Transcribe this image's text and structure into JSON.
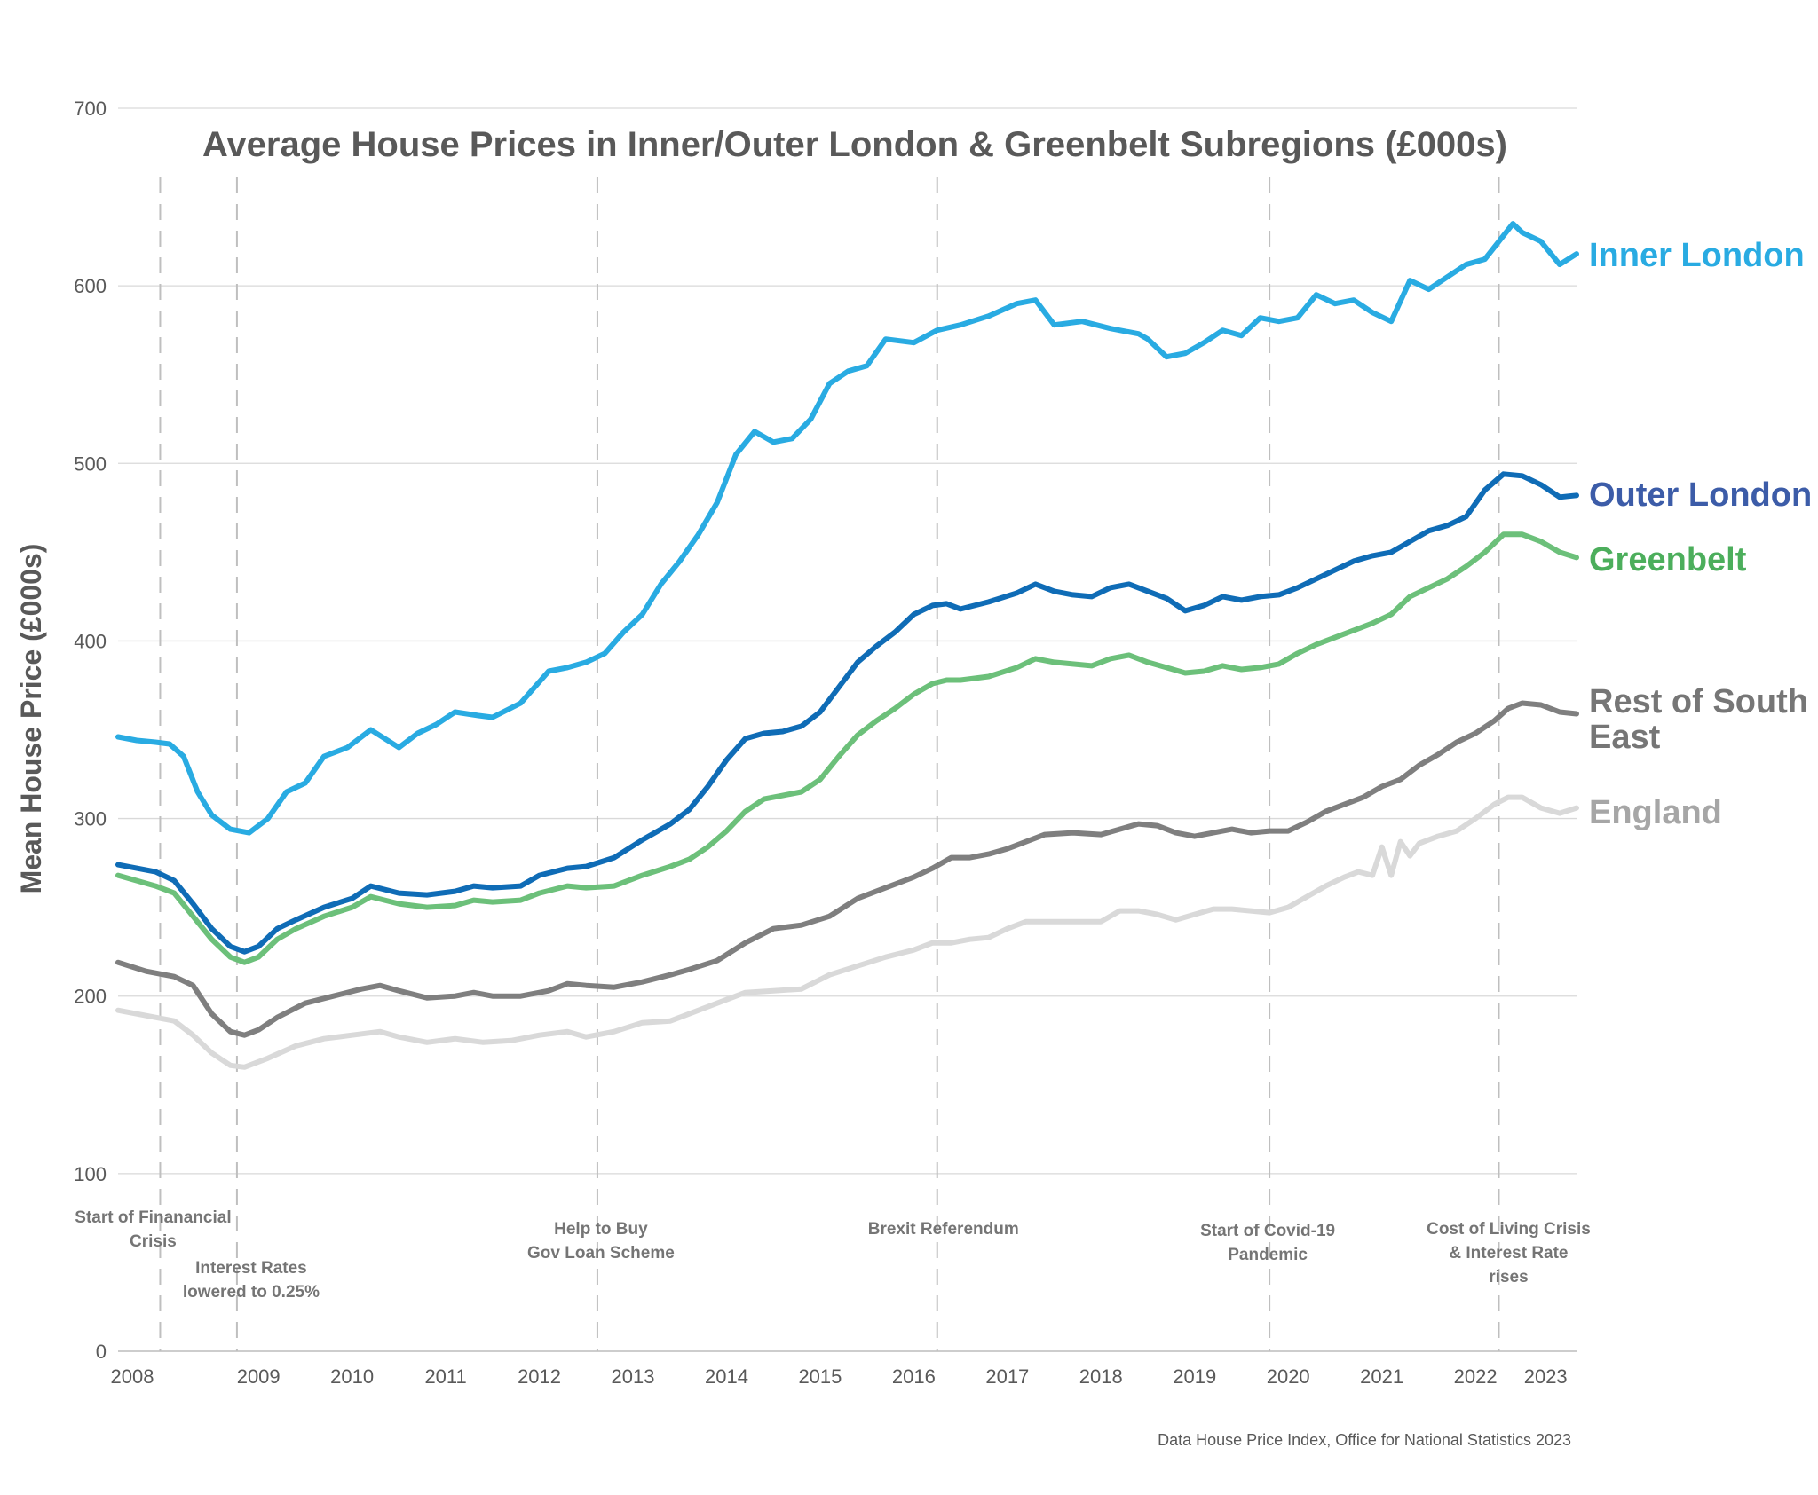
{
  "chart_data": {
    "type": "line",
    "title": "Average House Prices in Inner/Outer London & Greenbelt Subregions (£000s)",
    "ylabel": "Mean House Price (£000s)",
    "xlabel": "",
    "ylim": [
      0,
      700
    ],
    "yticks": [
      0,
      100,
      200,
      300,
      400,
      500,
      600,
      700
    ],
    "xlim": [
      2008.0,
      2023.58
    ],
    "xticks": [
      2008,
      2009,
      2010,
      2011,
      2012,
      2013,
      2014,
      2015,
      2016,
      2017,
      2018,
      2019,
      2020,
      2021,
      2022,
      2023
    ],
    "xtick_labels": [
      "2008",
      "2009",
      "2010",
      "2011",
      "2012",
      "2013",
      "2014",
      "2015",
      "2016",
      "2017",
      "2018",
      "2019",
      "2020",
      "2021",
      "2022",
      "2023"
    ],
    "grid": "horizontal",
    "legend": "direct labels at right end of lines",
    "source": "Data House Price Index, Office for National Statistics 2023",
    "series": [
      {
        "name": "Inner London",
        "color": "#29abe2",
        "x": [
          2008.0,
          2008.2,
          2008.4,
          2008.55,
          2008.7,
          2008.85,
          2009.0,
          2009.2,
          2009.4,
          2009.6,
          2009.8,
          2010.0,
          2010.2,
          2010.45,
          2010.7,
          2011.0,
          2011.2,
          2011.4,
          2011.6,
          2011.85,
          2012.0,
          2012.3,
          2012.6,
          2012.8,
          2013.0,
          2013.2,
          2013.4,
          2013.6,
          2013.8,
          2014.0,
          2014.2,
          2014.4,
          2014.6,
          2014.8,
          2015.0,
          2015.2,
          2015.4,
          2015.6,
          2015.8,
          2016.0,
          2016.2,
          2016.5,
          2016.75,
          2017.0,
          2017.3,
          2017.6,
          2017.8,
          2018.0,
          2018.3,
          2018.6,
          2018.9,
          2019.0,
          2019.2,
          2019.4,
          2019.6,
          2019.8,
          2020.0,
          2020.2,
          2020.4,
          2020.6,
          2020.8,
          2021.0,
          2021.2,
          2021.4,
          2021.6,
          2021.8,
          2022.0,
          2022.2,
          2022.4,
          2022.6,
          2022.75,
          2022.9,
          2023.0,
          2023.2,
          2023.4,
          2023.58
        ],
        "values": [
          346,
          344,
          343,
          342,
          335,
          315,
          302,
          294,
          292,
          300,
          315,
          320,
          335,
          340,
          350,
          340,
          348,
          353,
          360,
          358,
          357,
          365,
          383,
          385,
          388,
          393,
          405,
          415,
          432,
          445,
          460,
          478,
          505,
          518,
          512,
          514,
          525,
          545,
          552,
          555,
          570,
          568,
          575,
          578,
          583,
          590,
          592,
          578,
          580,
          576,
          573,
          570,
          560,
          562,
          568,
          575,
          572,
          582,
          580,
          582,
          595,
          590,
          592,
          585,
          580,
          603,
          598,
          605,
          612,
          615,
          625,
          635,
          630,
          625,
          612,
          618
        ]
      },
      {
        "name": "Outer London",
        "color": "#0f6cb6",
        "label_color": "#3c5ca8",
        "x": [
          2008.0,
          2008.2,
          2008.4,
          2008.6,
          2008.8,
          2009.0,
          2009.2,
          2009.35,
          2009.5,
          2009.7,
          2009.9,
          2010.2,
          2010.5,
          2010.7,
          2011.0,
          2011.3,
          2011.6,
          2011.8,
          2012.0,
          2012.3,
          2012.5,
          2012.8,
          2013.0,
          2013.3,
          2013.6,
          2013.9,
          2014.1,
          2014.3,
          2014.5,
          2014.7,
          2014.9,
          2015.1,
          2015.3,
          2015.5,
          2015.7,
          2015.9,
          2016.1,
          2016.3,
          2016.5,
          2016.7,
          2016.85,
          2017.0,
          2017.3,
          2017.6,
          2017.8,
          2018.0,
          2018.2,
          2018.4,
          2018.6,
          2018.8,
          2019.0,
          2019.2,
          2019.4,
          2019.6,
          2019.8,
          2020.0,
          2020.2,
          2020.4,
          2020.6,
          2020.8,
          2021.0,
          2021.2,
          2021.4,
          2021.6,
          2021.8,
          2022.0,
          2022.2,
          2022.4,
          2022.6,
          2022.8,
          2023.0,
          2023.2,
          2023.4,
          2023.58
        ],
        "values": [
          274,
          272,
          270,
          265,
          252,
          238,
          228,
          225,
          228,
          238,
          243,
          250,
          255,
          262,
          258,
          257,
          259,
          262,
          261,
          262,
          268,
          272,
          273,
          278,
          288,
          297,
          305,
          318,
          333,
          345,
          348,
          349,
          352,
          360,
          374,
          388,
          397,
          405,
          415,
          420,
          421,
          418,
          422,
          427,
          432,
          428,
          426,
          425,
          430,
          432,
          428,
          424,
          417,
          420,
          425,
          423,
          425,
          426,
          430,
          435,
          440,
          445,
          448,
          450,
          456,
          462,
          465,
          470,
          485,
          494,
          493,
          488,
          481,
          482
        ]
      },
      {
        "name": "Greenbelt",
        "color": "#6cc07a",
        "label_color": "#4cae5c",
        "x": [
          2008.0,
          2008.2,
          2008.4,
          2008.6,
          2008.8,
          2009.0,
          2009.2,
          2009.35,
          2009.5,
          2009.7,
          2009.9,
          2010.2,
          2010.5,
          2010.7,
          2011.0,
          2011.3,
          2011.6,
          2011.8,
          2012.0,
          2012.3,
          2012.5,
          2012.8,
          2013.0,
          2013.3,
          2013.6,
          2013.9,
          2014.1,
          2014.3,
          2014.5,
          2014.7,
          2014.9,
          2015.1,
          2015.3,
          2015.5,
          2015.7,
          2015.9,
          2016.1,
          2016.3,
          2016.5,
          2016.7,
          2016.85,
          2017.0,
          2017.3,
          2017.6,
          2017.8,
          2018.0,
          2018.2,
          2018.4,
          2018.6,
          2018.8,
          2019.0,
          2019.2,
          2019.4,
          2019.6,
          2019.8,
          2020.0,
          2020.2,
          2020.4,
          2020.6,
          2020.8,
          2021.0,
          2021.2,
          2021.4,
          2021.6,
          2021.8,
          2022.0,
          2022.2,
          2022.4,
          2022.6,
          2022.8,
          2023.0,
          2023.2,
          2023.4,
          2023.58
        ],
        "values": [
          268,
          265,
          262,
          258,
          245,
          232,
          222,
          219,
          222,
          232,
          238,
          245,
          250,
          256,
          252,
          250,
          251,
          254,
          253,
          254,
          258,
          262,
          261,
          262,
          268,
          273,
          277,
          284,
          293,
          304,
          311,
          313,
          315,
          322,
          335,
          347,
          355,
          362,
          370,
          376,
          378,
          378,
          380,
          385,
          390,
          388,
          387,
          386,
          390,
          392,
          388,
          385,
          382,
          383,
          386,
          384,
          385,
          387,
          393,
          398,
          402,
          406,
          410,
          415,
          425,
          430,
          435,
          442,
          450,
          460,
          460,
          456,
          450,
          447
        ]
      },
      {
        "name": "Rest of South East",
        "color": "#7f7f7f",
        "label_color": "#767676",
        "x": [
          2008.0,
          2008.3,
          2008.6,
          2008.8,
          2009.0,
          2009.2,
          2009.35,
          2009.5,
          2009.7,
          2010.0,
          2010.3,
          2010.6,
          2010.8,
          2011.0,
          2011.3,
          2011.6,
          2011.8,
          2012.0,
          2012.3,
          2012.6,
          2012.8,
          2013.0,
          2013.3,
          2013.6,
          2013.9,
          2014.1,
          2014.4,
          2014.7,
          2015.0,
          2015.3,
          2015.6,
          2015.9,
          2016.2,
          2016.5,
          2016.7,
          2016.9,
          2017.1,
          2017.3,
          2017.5,
          2017.7,
          2017.9,
          2018.2,
          2018.5,
          2018.7,
          2018.9,
          2019.1,
          2019.3,
          2019.5,
          2019.7,
          2019.9,
          2020.1,
          2020.3,
          2020.5,
          2020.7,
          2020.9,
          2021.1,
          2021.3,
          2021.5,
          2021.7,
          2021.9,
          2022.1,
          2022.3,
          2022.5,
          2022.7,
          2022.85,
          2023.0,
          2023.2,
          2023.4,
          2023.58
        ],
        "values": [
          219,
          214,
          211,
          206,
          190,
          180,
          178,
          181,
          188,
          196,
          200,
          204,
          206,
          203,
          199,
          200,
          202,
          200,
          200,
          203,
          207,
          206,
          205,
          208,
          212,
          215,
          220,
          230,
          238,
          240,
          245,
          255,
          261,
          267,
          272,
          278,
          278,
          280,
          283,
          287,
          291,
          292,
          291,
          294,
          297,
          296,
          292,
          290,
          292,
          294,
          292,
          293,
          293,
          298,
          304,
          308,
          312,
          318,
          322,
          330,
          336,
          343,
          348,
          355,
          362,
          365,
          364,
          360,
          359
        ]
      },
      {
        "name": "England",
        "color": "#d9d9d9",
        "label_color": "#a6a6a6",
        "x": [
          2008.0,
          2008.3,
          2008.6,
          2008.8,
          2009.0,
          2009.2,
          2009.35,
          2009.6,
          2009.9,
          2010.2,
          2010.5,
          2010.8,
          2011.0,
          2011.3,
          2011.6,
          2011.9,
          2012.2,
          2012.5,
          2012.8,
          2013.0,
          2013.3,
          2013.6,
          2013.9,
          2014.1,
          2014.4,
          2014.7,
          2015.0,
          2015.3,
          2015.6,
          2015.9,
          2016.2,
          2016.5,
          2016.7,
          2016.9,
          2017.1,
          2017.3,
          2017.5,
          2017.7,
          2017.9,
          2018.2,
          2018.5,
          2018.7,
          2018.9,
          2019.1,
          2019.3,
          2019.5,
          2019.7,
          2019.9,
          2020.1,
          2020.3,
          2020.5,
          2020.7,
          2020.9,
          2021.1,
          2021.25,
          2021.4,
          2021.5,
          2021.6,
          2021.7,
          2021.8,
          2021.9,
          2022.1,
          2022.3,
          2022.5,
          2022.7,
          2022.85,
          2023.0,
          2023.2,
          2023.4,
          2023.58
        ],
        "values": [
          192,
          189,
          186,
          178,
          168,
          161,
          160,
          165,
          172,
          176,
          178,
          180,
          177,
          174,
          176,
          174,
          175,
          178,
          180,
          177,
          180,
          185,
          186,
          190,
          196,
          202,
          203,
          204,
          212,
          217,
          222,
          226,
          230,
          230,
          232,
          233,
          238,
          242,
          242,
          242,
          242,
          248,
          248,
          246,
          243,
          246,
          249,
          249,
          248,
          247,
          250,
          256,
          262,
          267,
          270,
          268,
          284,
          268,
          287,
          279,
          286,
          290,
          293,
          300,
          308,
          312,
          312,
          306,
          303,
          306
        ]
      }
    ],
    "events": [
      {
        "x": 2008.45,
        "label": "Start of Finanancial\nCrisis"
      },
      {
        "x": 2009.27,
        "label": "Interest Rates\nlowered to 0.25%"
      },
      {
        "x": 2013.12,
        "label": "Help to Buy\nGov Loan Scheme"
      },
      {
        "x": 2016.75,
        "label": "Brexit Referendum"
      },
      {
        "x": 2020.3,
        "label": "Start of Covid-19\nPandemic"
      },
      {
        "x": 2022.75,
        "label": "Cost of Living Crisis\n& Interest Rate\nrises"
      }
    ]
  }
}
